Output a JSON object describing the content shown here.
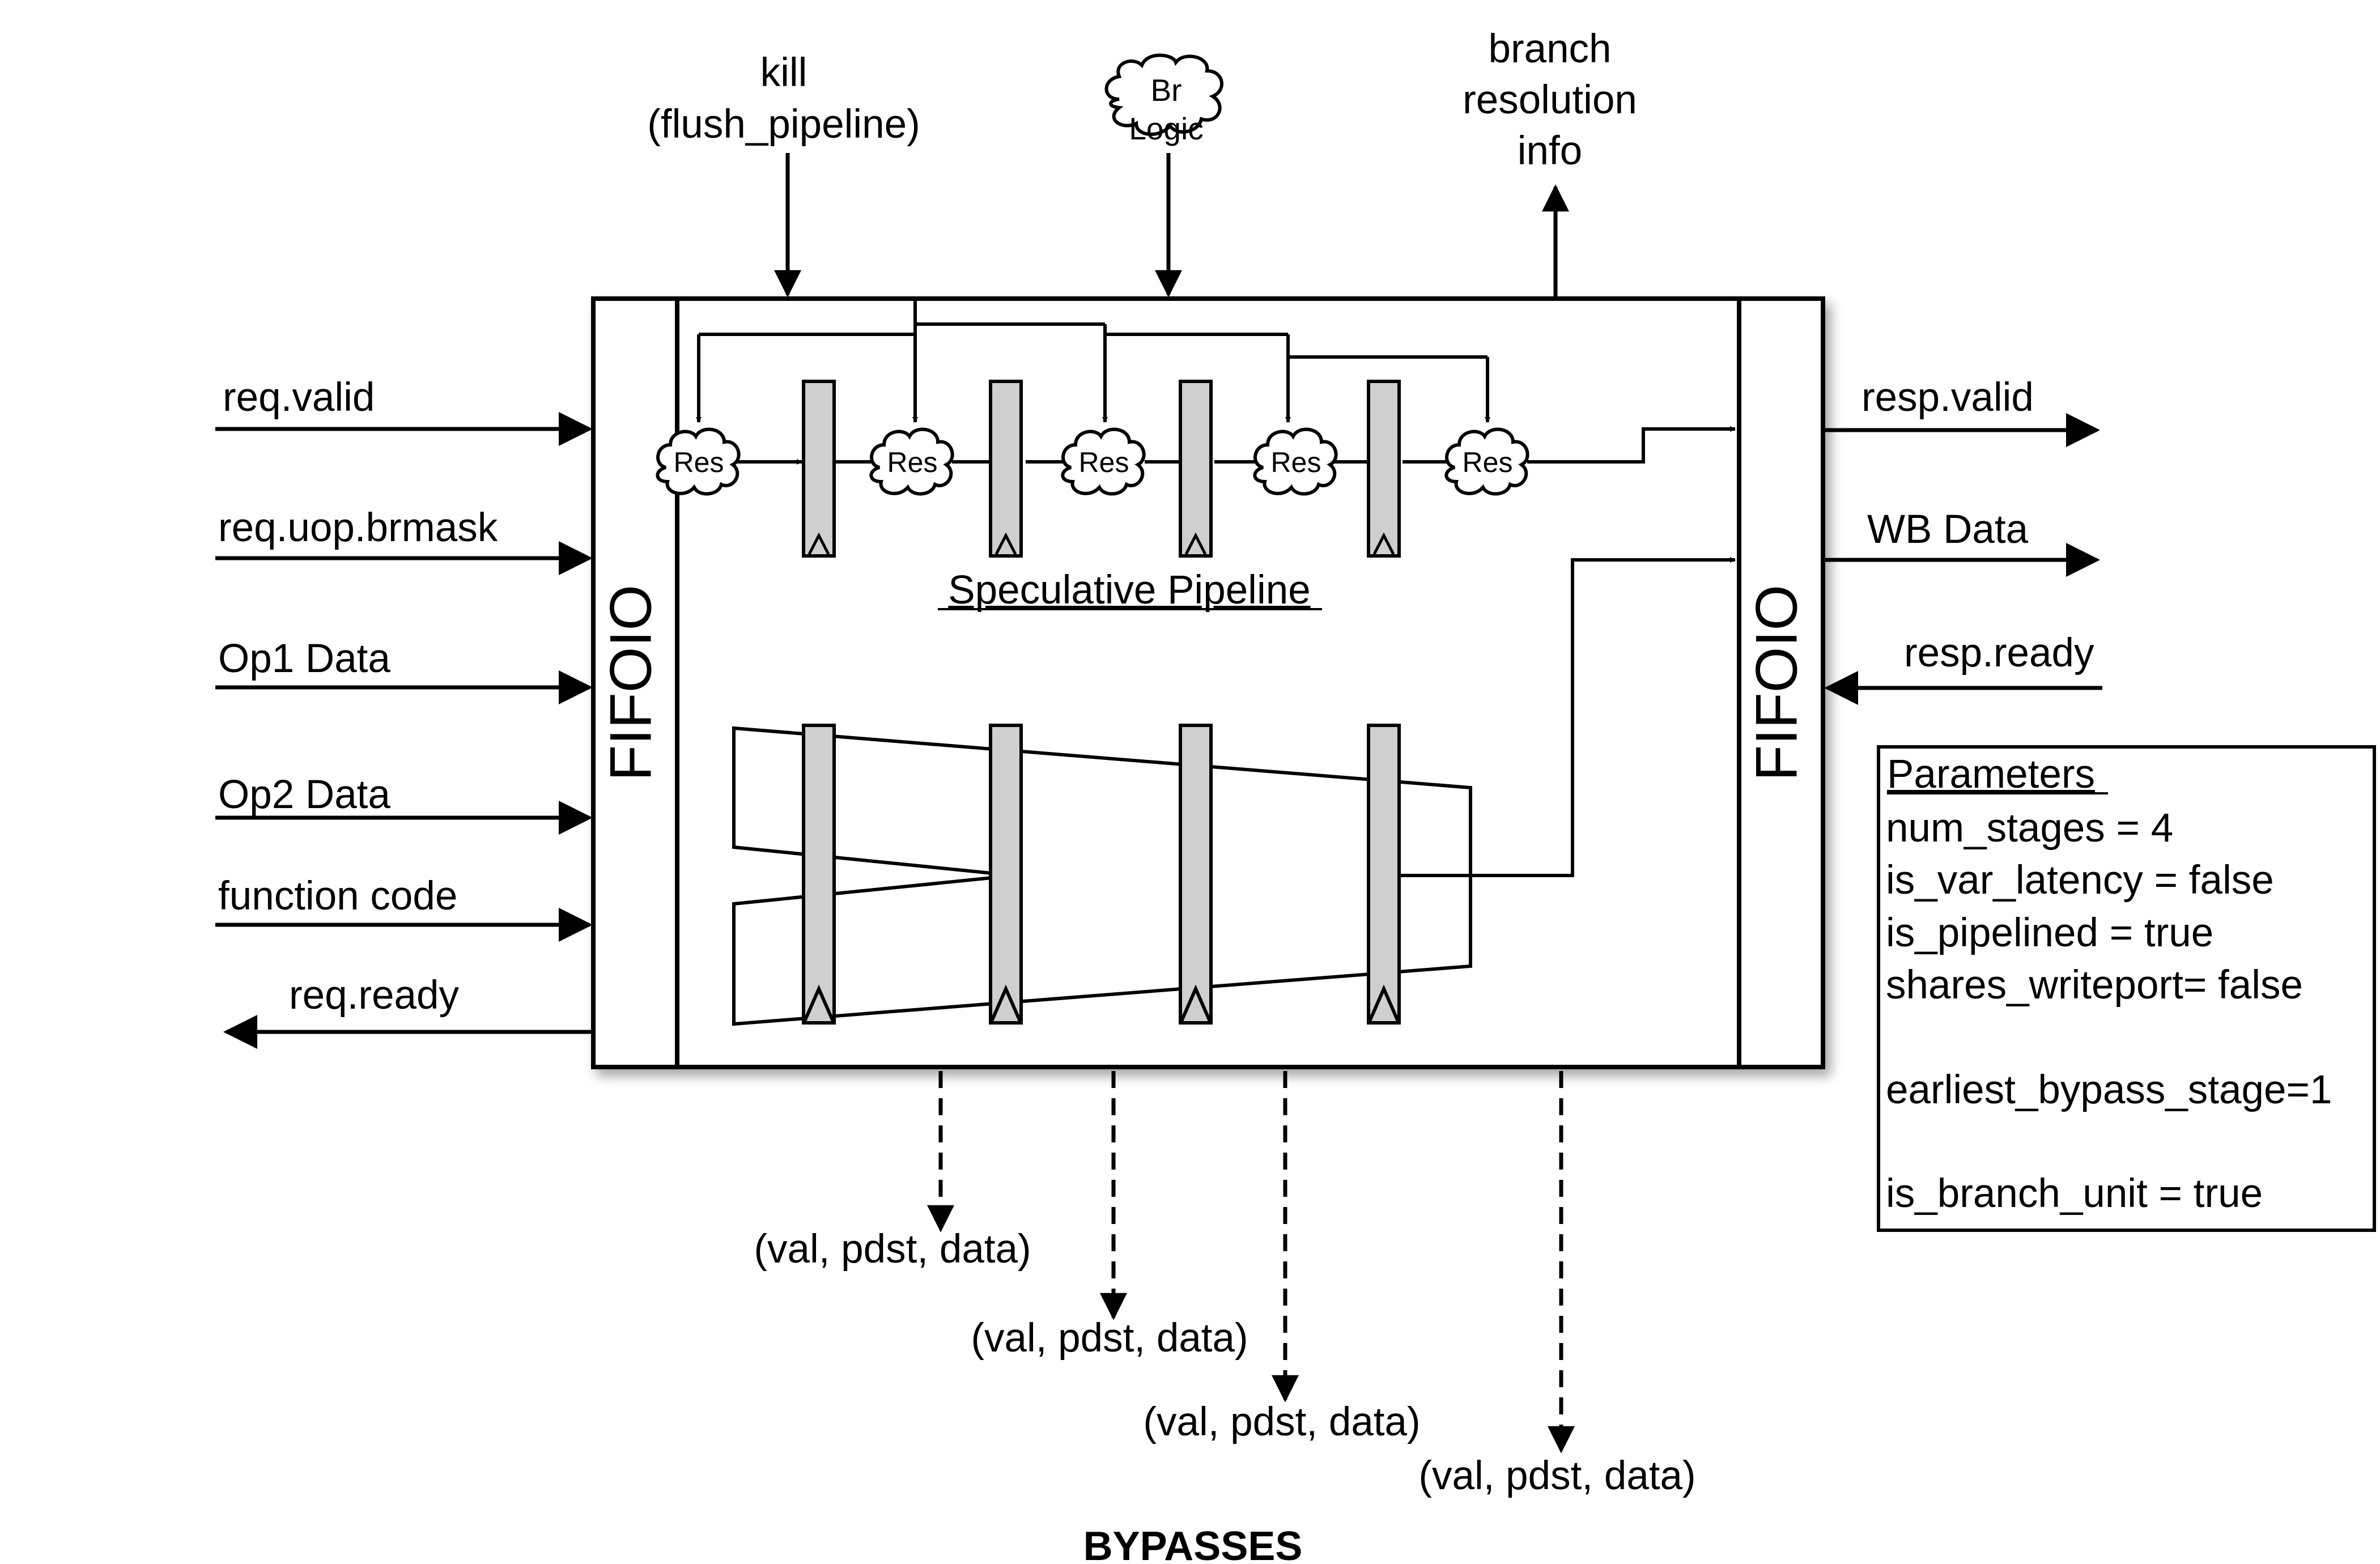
{
  "inputs": {
    "kill": "kill",
    "kill_sub": "(flush_pipeline)",
    "br_logic_1": "Br",
    "br_logic_2": "Logic",
    "branch_1": "branch",
    "branch_2": "resolution",
    "branch_3": "info"
  },
  "left_ports": [
    "req.valid",
    "req.uop.brmask",
    "Op1 Data",
    "Op2 Data",
    "function code",
    "req.ready"
  ],
  "right_ports": [
    "resp.valid",
    "WB Data",
    "resp.ready"
  ],
  "fifo_left": "FIFOIO",
  "fifo_right": "FIFOIO",
  "res_label": "Res",
  "speculative_label": "Speculative Pipeline",
  "parameters": {
    "title": "Parameters",
    "lines": [
      "num_stages = 4",
      "is_var_latency = false",
      "is_pipelined = true",
      "shares_writeport= false",
      "earliest_bypass_stage=1",
      "is_branch_unit = true"
    ]
  },
  "bypass_label": "(val, pdst, data)",
  "bypasses_title": "BYPASSES"
}
